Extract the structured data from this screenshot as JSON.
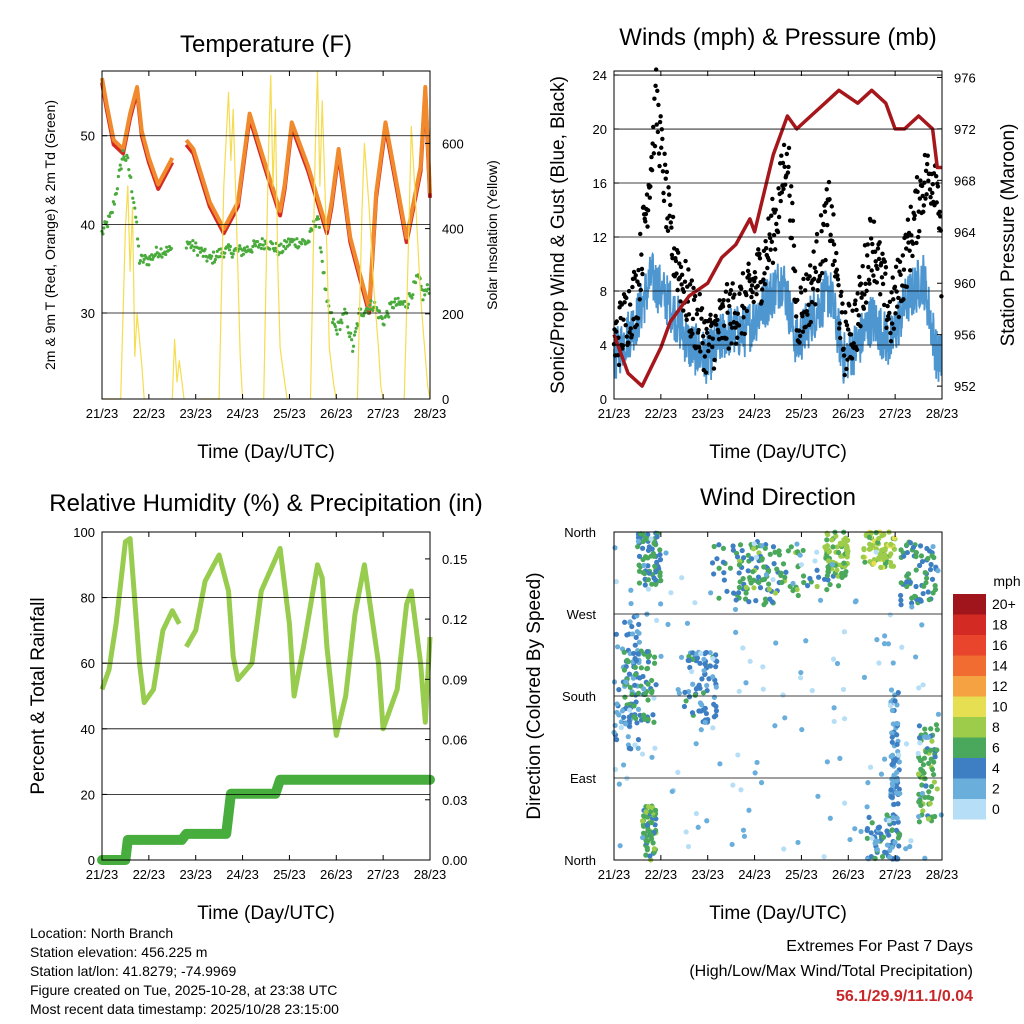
{
  "colors": {
    "temp_2m": "#d42a24",
    "temp_9m": "#f08a2c",
    "dewpoint": "#4aab3c",
    "solar": "#f5dc50",
    "wind_sonic": "#4d96d0",
    "wind_gust": "#000000",
    "pressure": "#a6171c",
    "rh": "#97cc4f",
    "precip": "#47ae3e",
    "extremes": "#c8282a"
  },
  "x_ticks": [
    "21/23",
    "22/23",
    "23/23",
    "24/23",
    "25/23",
    "26/23",
    "27/23",
    "28/23"
  ],
  "chart_data": [
    {
      "type": "line",
      "id": "temperature",
      "title": "Temperature (F)",
      "xlabel": "Time (Day/UTC)",
      "ylabel": "2m & 9m T (Red, Orange) & 2m Td (Green)",
      "y2label": "Solar Insolation (Yellow)",
      "xlim": [
        0,
        7
      ],
      "ylim": [
        20.3,
        57.3
      ],
      "y_ticks": [
        30,
        40,
        50
      ],
      "y2lim": [
        0,
        770
      ],
      "y2_ticks": [
        0,
        200,
        400,
        600
      ],
      "series": [
        {
          "name": "2m T",
          "color": "red",
          "x": [
            0,
            0.1,
            0.25,
            0.45,
            0.6,
            0.75,
            0.85,
            1.0,
            1.2,
            1.5,
            1.75,
            1.8,
            1.95,
            2.3,
            2.6,
            2.9,
            3.0,
            3.15,
            3.5,
            3.8,
            3.9,
            4.05,
            4.4,
            4.8,
            4.9,
            5.05,
            5.3,
            5.7,
            5.85,
            6.05,
            6.5,
            6.8,
            6.9,
            7.0
          ],
          "y": [
            56,
            53,
            49,
            48,
            52,
            55,
            50,
            47,
            44,
            47,
            null,
            49,
            48,
            42,
            39,
            42,
            46,
            52,
            46,
            41,
            44,
            51,
            46,
            39,
            42,
            48,
            38,
            30,
            43,
            51,
            38,
            46,
            55,
            43
          ]
        },
        {
          "name": "9m T",
          "color": "orange",
          "x": [
            0,
            0.1,
            0.25,
            0.45,
            0.6,
            0.75,
            0.85,
            1.0,
            1.2,
            1.5,
            1.75,
            1.8,
            1.95,
            2.3,
            2.6,
            2.9,
            3.0,
            3.15,
            3.5,
            3.8,
            3.9,
            4.05,
            4.4,
            4.8,
            4.9,
            5.05,
            5.3,
            5.7,
            5.85,
            6.05,
            6.5,
            6.8,
            6.9,
            7.0
          ],
          "y": [
            56.5,
            53.5,
            49.5,
            48.5,
            52.5,
            55.5,
            50.5,
            47.5,
            44.5,
            47.5,
            null,
            49.5,
            48.5,
            42.5,
            39.5,
            42.5,
            46.5,
            52.5,
            46.5,
            41.5,
            44.5,
            51.5,
            46.5,
            39.5,
            42.5,
            48.5,
            38.5,
            30.5,
            43.5,
            51.5,
            38.5,
            46.5,
            55.5,
            43.5
          ]
        },
        {
          "name": "2m Td",
          "color": "green",
          "x": [
            0,
            0.1,
            0.2,
            0.35,
            0.45,
            0.55,
            0.7,
            0.8,
            1.0,
            1.2,
            1.5,
            1.75,
            1.8,
            2.1,
            2.3,
            2.6,
            3.0,
            3.5,
            3.8,
            4.0,
            4.4,
            4.6,
            4.8,
            5.0,
            5.2,
            5.35,
            5.5,
            5.8,
            6.0,
            6.2,
            6.5,
            6.75,
            6.85,
            7.0
          ],
          "y": [
            39,
            40,
            41,
            45,
            48,
            47,
            42,
            36,
            36,
            37,
            37,
            null,
            38,
            37,
            36,
            37,
            37,
            38,
            37,
            38,
            38,
            41,
            31,
            28,
            30,
            26,
            30,
            31,
            29,
            31,
            31,
            34,
            32,
            33
          ]
        },
        {
          "name": "Solar Insolation",
          "color": "solar",
          "axis": "y2",
          "x": [
            0,
            0.4,
            0.5,
            0.55,
            0.6,
            0.65,
            0.7,
            0.75,
            0.85,
            0.9,
            null,
            1.5,
            1.55,
            1.6,
            1.65,
            1.75,
            null,
            2.1,
            2.5,
            2.6,
            2.7,
            2.75,
            2.8,
            2.9,
            2.95,
            3.0,
            null,
            3.45,
            3.55,
            3.6,
            3.65,
            3.7,
            3.75,
            3.8,
            3.9,
            3.95,
            null,
            4.45,
            4.55,
            4.6,
            4.65,
            4.7,
            4.8,
            4.85,
            4.95,
            5.0,
            null,
            5.45,
            5.55,
            5.6,
            5.7,
            5.8,
            5.9,
            5.95,
            6.0,
            null,
            6.45,
            6.55,
            6.6,
            6.7,
            6.8,
            6.9,
            6.95,
            7.0
          ],
          "y": [
            0,
            0,
            400,
            500,
            300,
            450,
            100,
            200,
            80,
            0,
            null,
            0,
            140,
            40,
            90,
            0,
            null,
            0,
            0,
            500,
            720,
            560,
            680,
            300,
            100,
            0,
            null,
            0,
            560,
            760,
            500,
            680,
            320,
            120,
            40,
            0,
            null,
            0,
            580,
            770,
            500,
            700,
            350,
            120,
            30,
            0,
            null,
            0,
            450,
            600,
            450,
            260,
            120,
            30,
            0,
            null,
            0,
            400,
            640,
            450,
            240,
            100,
            30,
            0
          ]
        }
      ]
    },
    {
      "type": "scatter",
      "id": "winds",
      "title": "Winds (mph) & Pressure (mb)",
      "xlabel": "Time (Day/UTC)",
      "ylabel": "Sonic/Prop Wind & Gust (Blue, Black)",
      "y2label": "Station Pressure (Maroon)",
      "xlim": [
        0,
        7
      ],
      "ylim": [
        0,
        24.3
      ],
      "y_ticks": [
        0,
        4,
        8,
        12,
        16,
        20,
        24
      ],
      "y2lim": [
        951,
        976.5
      ],
      "y2_ticks": [
        952,
        956,
        960,
        964,
        968,
        972,
        976
      ],
      "series": [
        {
          "name": "Sonic/Prop Wind",
          "color": "blue",
          "x": [
            0,
            0.5,
            0.8,
            1.2,
            1.6,
            2.0,
            2.4,
            2.8,
            3.2,
            3.6,
            3.9,
            4.2,
            4.6,
            4.9,
            5.2,
            5.5,
            5.9,
            6.2,
            6.6,
            6.9,
            7.0
          ],
          "y": [
            3,
            6,
            9,
            7,
            4,
            3,
            5,
            5,
            7,
            9,
            4,
            6,
            8,
            3,
            4,
            6,
            4,
            7,
            9,
            3,
            3
          ]
        },
        {
          "name": "Gust",
          "color": "black",
          "x": [
            0,
            0.5,
            0.8,
            0.9,
            1.2,
            1.6,
            2.0,
            2.4,
            2.8,
            3.2,
            3.5,
            3.7,
            3.9,
            4.2,
            4.6,
            4.9,
            5.2,
            5.5,
            5.9,
            6.2,
            6.6,
            6.9,
            7.0
          ],
          "y": [
            4,
            8,
            18,
            22,
            12,
            7,
            4,
            6,
            7,
            10,
            14,
            19,
            6,
            8,
            14,
            4,
            6,
            12,
            6,
            10,
            16,
            17,
            8
          ]
        },
        {
          "name": "Station Pressure",
          "color": "maroon",
          "axis": "y2",
          "x": [
            0,
            0.3,
            0.6,
            1.0,
            1.2,
            1.6,
            2.0,
            2.3,
            2.6,
            2.9,
            3.0,
            3.4,
            3.7,
            3.9,
            4.2,
            4.5,
            4.8,
            5.2,
            5.5,
            5.8,
            6.0,
            6.2,
            6.5,
            6.8,
            6.9,
            7.0
          ],
          "y": [
            956,
            953,
            952,
            955,
            957,
            959,
            960,
            962,
            963,
            965,
            964,
            970,
            973,
            972,
            973,
            974,
            975,
            974,
            975,
            974,
            972,
            972,
            973,
            972,
            969,
            969
          ]
        }
      ]
    },
    {
      "type": "line",
      "id": "humidity",
      "title": "Relative Humidity (%) & Precipitation (in)",
      "xlabel": "Time (Day/UTC)",
      "ylabel": "Percent & Total Rainfall",
      "xlim": [
        0,
        7
      ],
      "ylim": [
        0,
        100
      ],
      "y_ticks": [
        0,
        20,
        40,
        60,
        80,
        100
      ],
      "y2lim": [
        0,
        0.1634
      ],
      "y2_ticks": [
        "0.00",
        "0.03",
        "0.06",
        "0.09",
        "0.12",
        "0.15"
      ],
      "series": [
        {
          "name": "Relative Humidity",
          "color": "rh",
          "x": [
            0,
            0.15,
            0.3,
            0.5,
            0.6,
            0.8,
            0.9,
            1.1,
            1.3,
            1.5,
            1.65,
            1.75,
            1.8,
            2.0,
            2.2,
            2.5,
            2.7,
            2.8,
            2.9,
            3.2,
            3.4,
            3.8,
            4.0,
            4.1,
            4.3,
            4.6,
            4.7,
            4.8,
            5.0,
            5.2,
            5.4,
            5.6,
            5.7,
            5.9,
            6.0,
            6.3,
            6.5,
            6.6,
            6.8,
            6.9,
            7.0
          ],
          "y": [
            52,
            58,
            72,
            97,
            98,
            60,
            48,
            52,
            70,
            76,
            72,
            null,
            65,
            70,
            85,
            93,
            82,
            62,
            55,
            60,
            82,
            95,
            72,
            50,
            65,
            90,
            86,
            65,
            38,
            50,
            75,
            90,
            80,
            60,
            40,
            52,
            78,
            82,
            60,
            42,
            68
          ]
        },
        {
          "name": "Total Precipitation",
          "color": "precip",
          "axis": "y2",
          "x": [
            0,
            0.5,
            0.55,
            1.7,
            1.8,
            2.65,
            2.75,
            3.7,
            3.8,
            4.7,
            4.8,
            7.0
          ],
          "y": [
            0,
            0,
            0.01,
            0.01,
            0.013,
            0.013,
            0.033,
            0.033,
            0.04,
            0.04,
            0.04,
            0.04
          ]
        }
      ]
    },
    {
      "type": "scatter",
      "id": "direction",
      "title": "Wind Direction",
      "xlabel": "Time (Day/UTC)",
      "ylabel": "Direction (Colored By Speed)",
      "xlim": [
        0,
        7
      ],
      "ylim": [
        0,
        360
      ],
      "y_tick_labels": [
        "North",
        "East",
        "South",
        "West",
        "North"
      ],
      "y_tick_values": [
        0,
        90,
        180,
        270,
        360
      ],
      "colorbar_title": "mph",
      "colorbar_labels": [
        "20+",
        "18",
        "16",
        "14",
        "12",
        "10",
        "8",
        "6",
        "4",
        "2",
        "0"
      ],
      "colorbar_colors": [
        "#a0141c",
        "#d42a24",
        "#e8452c",
        "#f06c30",
        "#f5a242",
        "#e6df52",
        "#9ccc4a",
        "#4aa85c",
        "#3e7fc4",
        "#6aaedc",
        "#b6def6"
      ],
      "clusters": [
        {
          "x": [
            0,
            0.6
          ],
          "y": [
            120,
            270
          ],
          "speed": 3
        },
        {
          "x": [
            0.2,
            0.9
          ],
          "y": [
            150,
            230
          ],
          "speed": 5
        },
        {
          "x": [
            0.5,
            1.0
          ],
          "y": [
            300,
            360
          ],
          "speed": 5
        },
        {
          "x": [
            0.6,
            0.9
          ],
          "y": [
            0,
            60
          ],
          "speed": 6
        },
        {
          "x": [
            1.5,
            2.2
          ],
          "y": [
            150,
            230
          ],
          "speed": 4
        },
        {
          "x": [
            2.1,
            3.6
          ],
          "y": [
            280,
            350
          ],
          "speed": 5
        },
        {
          "x": [
            2.6,
            4.8
          ],
          "y": [
            290,
            345
          ],
          "speed": 6
        },
        {
          "x": [
            4.5,
            5.0
          ],
          "y": [
            310,
            360
          ],
          "speed": 7
        },
        {
          "x": [
            5.3,
            6.0
          ],
          "y": [
            320,
            360
          ],
          "speed": 8
        },
        {
          "x": [
            5.9,
            6.1
          ],
          "y": [
            60,
            190
          ],
          "speed": 3
        },
        {
          "x": [
            5.4,
            6.1
          ],
          "y": [
            0,
            50
          ],
          "speed": 4
        },
        {
          "x": [
            6.5,
            6.9
          ],
          "y": [
            40,
            150
          ],
          "speed": 6
        },
        {
          "x": [
            6.1,
            6.9
          ],
          "y": [
            280,
            350
          ],
          "speed": 5
        },
        {
          "x": [
            0,
            7
          ],
          "y": [
            0,
            360
          ],
          "speed": 1
        }
      ]
    }
  ],
  "info": {
    "location": "Location: North Branch",
    "elevation": "Station elevation: 456.225 m",
    "latlon": "Station lat/lon: 41.8279; -74.9969",
    "created": "Figure created on Tue, 2025-10-28, at 23:38 UTC",
    "recent": "Most recent data timestamp: 2025/10/28 23:15:00"
  },
  "extremes": {
    "title": "Extremes For Past 7 Days",
    "subtitle": "(High/Low/Max Wind/Total Precipitation)",
    "values": "56.1/29.9/11.1/0.04"
  }
}
